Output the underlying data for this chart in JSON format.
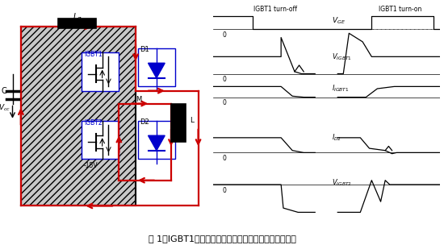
{
  "fig_width": 5.5,
  "fig_height": 3.04,
  "dpi": 100,
  "background_color": "#ffffff",
  "caption": "图 1：IGBT1半桥电路和开启、关断时的电流与电压波形",
  "caption_fontsize": 8,
  "turn_off_label": "IGBT1 turn-off",
  "turn_on_label": "IGBT1 turn-on",
  "vge_label": "V_GE",
  "vigbt1_label": "V_IGBT1",
  "iigbt1_label": "I_IGBT1",
  "id2_label": "I_D2",
  "vigbt2_label": "V_IGBT2",
  "line_color": "#000000",
  "red_color": "#cc0000",
  "blue_color": "#0000cc"
}
